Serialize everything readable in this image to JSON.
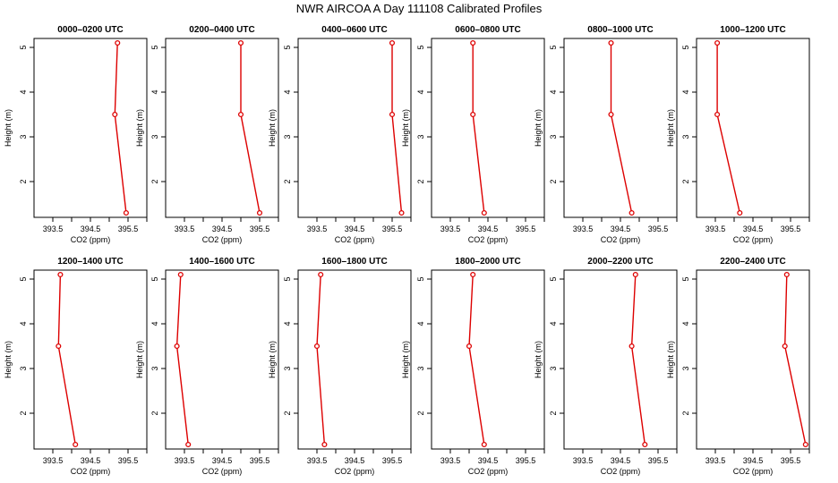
{
  "title": "NWR AIRCOA A  Day 111108  Calibrated Profiles",
  "chart_data": {
    "type": "line",
    "xlabel": "CO2 (ppm)",
    "ylabel": "Height (m)",
    "xticks": [
      393.5,
      394.0,
      394.5,
      395.0,
      395.5,
      396.0
    ],
    "xtick_labels": [
      "393.5",
      "",
      "394.5",
      "",
      "395.5",
      ""
    ],
    "yticks": [
      2,
      3,
      4,
      5
    ],
    "ytick_labels": [
      "2",
      "3",
      "4",
      "5"
    ],
    "line_color": "#dd0000",
    "panels": [
      {
        "title": "0000–0200 UTC",
        "xlim": [
          393.0,
          396.0
        ],
        "ylim": [
          1.2,
          5.2
        ],
        "heights": [
          5.1,
          3.5,
          1.3
        ],
        "co2": [
          395.22,
          395.15,
          395.45
        ]
      },
      {
        "title": "0200–0400 UTC",
        "xlim": [
          393.0,
          396.0
        ],
        "ylim": [
          1.2,
          5.2
        ],
        "heights": [
          5.1,
          3.5,
          1.3
        ],
        "co2": [
          395.0,
          395.0,
          395.5
        ]
      },
      {
        "title": "0400–0600 UTC",
        "xlim": [
          393.0,
          396.0
        ],
        "ylim": [
          1.2,
          5.2
        ],
        "heights": [
          5.1,
          3.5,
          1.3
        ],
        "co2": [
          395.5,
          395.5,
          395.75
        ]
      },
      {
        "title": "0600–0800 UTC",
        "xlim": [
          393.0,
          396.0
        ],
        "ylim": [
          1.2,
          5.2
        ],
        "heights": [
          5.1,
          3.5,
          1.3
        ],
        "co2": [
          394.1,
          394.1,
          394.4
        ]
      },
      {
        "title": "0800–1000 UTC",
        "xlim": [
          393.0,
          396.0
        ],
        "ylim": [
          1.2,
          5.2
        ],
        "heights": [
          5.1,
          3.5,
          1.3
        ],
        "co2": [
          394.25,
          394.25,
          394.8
        ]
      },
      {
        "title": "1000–1200 UTC",
        "xlim": [
          393.0,
          396.0
        ],
        "ylim": [
          1.2,
          5.2
        ],
        "heights": [
          5.1,
          3.5,
          1.3
        ],
        "co2": [
          393.55,
          393.55,
          394.15
        ]
      },
      {
        "title": "1200–1400 UTC",
        "xlim": [
          393.0,
          396.0
        ],
        "ylim": [
          1.2,
          5.2
        ],
        "heights": [
          5.1,
          3.5,
          1.3
        ],
        "co2": [
          393.7,
          393.65,
          394.1
        ]
      },
      {
        "title": "1400–1600 UTC",
        "xlim": [
          393.0,
          396.0
        ],
        "ylim": [
          1.2,
          5.2
        ],
        "heights": [
          5.1,
          3.5,
          1.3
        ],
        "co2": [
          393.4,
          393.3,
          393.6
        ]
      },
      {
        "title": "1600–1800 UTC",
        "xlim": [
          393.0,
          396.0
        ],
        "ylim": [
          1.2,
          5.2
        ],
        "heights": [
          5.1,
          3.5,
          1.3
        ],
        "co2": [
          393.6,
          393.5,
          393.7
        ]
      },
      {
        "title": "1800–2000 UTC",
        "xlim": [
          393.0,
          396.0
        ],
        "ylim": [
          1.2,
          5.2
        ],
        "heights": [
          5.1,
          3.5,
          1.3
        ],
        "co2": [
          394.1,
          394.0,
          394.4
        ]
      },
      {
        "title": "2000–2200 UTC",
        "xlim": [
          393.0,
          396.0
        ],
        "ylim": [
          1.2,
          5.2
        ],
        "heights": [
          5.1,
          3.5,
          1.3
        ],
        "co2": [
          394.9,
          394.8,
          395.15
        ]
      },
      {
        "title": "2200–2400 UTC",
        "xlim": [
          393.0,
          396.0
        ],
        "ylim": [
          1.2,
          5.2
        ],
        "heights": [
          5.1,
          3.5,
          1.3
        ],
        "co2": [
          395.4,
          395.35,
          395.9
        ]
      }
    ]
  }
}
